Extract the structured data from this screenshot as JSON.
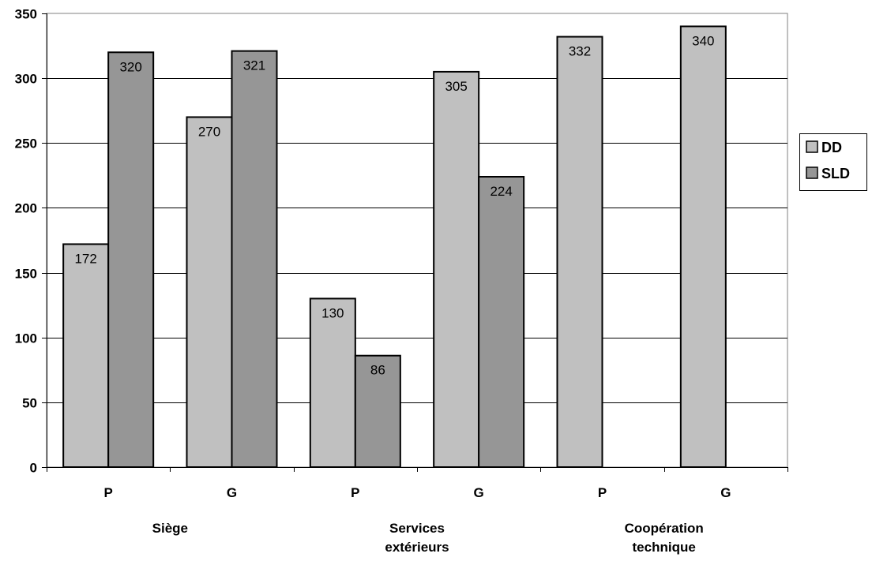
{
  "chart_data": {
    "type": "bar",
    "categories": [
      "P",
      "G",
      "P",
      "G",
      "P",
      "G"
    ],
    "groups": [
      {
        "lines": [
          "Siège"
        ]
      },
      {
        "lines": [
          "Services",
          "extérieurs"
        ]
      },
      {
        "lines": [
          "Coopération",
          "technique"
        ]
      }
    ],
    "series": [
      {
        "name": "DD",
        "color": "#c0c0c0",
        "values": [
          172,
          270,
          130,
          305,
          332,
          340
        ]
      },
      {
        "name": "SLD",
        "color": "#969696",
        "values": [
          320,
          321,
          86,
          224,
          null,
          null
        ]
      }
    ],
    "ylim": [
      0,
      350
    ],
    "yticks": [
      0,
      50,
      100,
      150,
      200,
      250,
      300,
      350
    ],
    "grid": true,
    "legend": "right"
  }
}
